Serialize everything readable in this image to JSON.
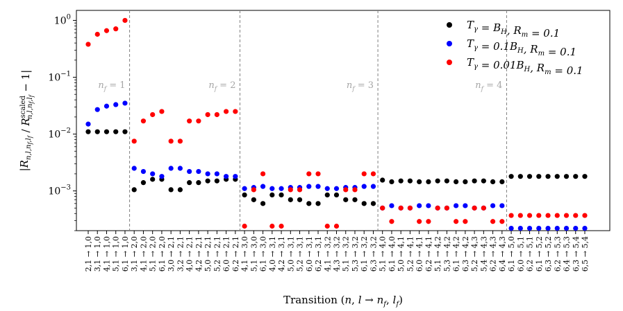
{
  "chart_data": {
    "type": "scatter",
    "xlabel": "Transition (n, l → n_f, l_f)",
    "ylabel": "|R_{n,l,n_f,l_f} / R^{scaled}_{n,l,n_f,l_f} − 1|",
    "yscale": "log",
    "ylim": [
      0.0002,
      1.5
    ],
    "yticks": [
      "10^{-3}",
      "10^{-2}",
      "10^{-1}",
      "10^{0}"
    ],
    "grid": false,
    "legend_position": "top-right",
    "categories": [
      "2,1 → 1,0",
      "3,1 → 1,0",
      "4,1 → 1,0",
      "5,1 → 1,0",
      "6,1 → 1,0",
      "3,1 → 2,0",
      "4,1 → 2,0",
      "5,1 → 2,0",
      "6,1 → 2,0",
      "3,0 → 2,1",
      "3,2 → 2,1",
      "4,0 → 2,1",
      "4,2 → 2,1",
      "5,0 → 2,1",
      "5,2 → 2,1",
      "6,0 → 2,1",
      "6,2 → 2,1",
      "4,1 → 3,0",
      "5,1 → 3,0",
      "6,1 → 3,0",
      "4,0 → 3,1",
      "4,2 → 3,1",
      "5,0 → 3,1",
      "5,2 → 3,1",
      "6,0 → 3,1",
      "6,2 → 3,1",
      "4,1 → 3,2",
      "4,3 → 3,2",
      "5,1 → 3,2",
      "5,3 → 3,2",
      "6,1 → 3,2",
      "6,3 → 3,2",
      "5,1 → 4,0",
      "6,1 → 4,0",
      "5,0 → 4,1",
      "5,2 → 4,1",
      "6,0 → 4,1",
      "6,2 → 4,1",
      "5,1 → 4,2",
      "5,3 → 4,2",
      "6,1 → 4,2",
      "6,3 → 4,2",
      "5,2 → 4,3",
      "5,4 → 4,3",
      "6,2 → 4,3",
      "6,4 → 4,3",
      "6,1 → 5,0",
      "6,0 → 5,1",
      "6,2 → 5,1",
      "6,1 → 5,2",
      "6,3 → 5,2",
      "6,2 → 5,3",
      "6,4 → 5,3",
      "6,3 → 5,4",
      "6,5 → 5,4"
    ],
    "regions": [
      {
        "label": "n_f = 1",
        "end_index": 4
      },
      {
        "label": "n_f = 2",
        "end_index": 16
      },
      {
        "label": "n_f = 3",
        "end_index": 31
      },
      {
        "label": "n_f = 4",
        "end_index": 45
      }
    ],
    "series": [
      {
        "name": "T_γ = B_H, R_m = 0.1",
        "color": "#000000",
        "values": [
          0.011,
          0.011,
          0.011,
          0.011,
          0.011,
          0.00105,
          0.0014,
          0.0016,
          0.0016,
          0.00105,
          0.00105,
          0.0014,
          0.0014,
          0.0015,
          0.0015,
          0.0016,
          0.0016,
          0.00085,
          0.0007,
          0.0006,
          0.00085,
          0.00085,
          0.0007,
          0.0007,
          0.0006,
          0.0006,
          0.00085,
          0.00085,
          0.0007,
          0.0007,
          0.0006,
          0.0006,
          0.00155,
          0.00145,
          0.0015,
          0.0015,
          0.00145,
          0.00145,
          0.0015,
          0.0015,
          0.00145,
          0.00145,
          0.0015,
          0.0015,
          0.00145,
          0.00145,
          0.0018,
          0.0018,
          0.0018,
          0.0018,
          0.0018,
          0.0018,
          0.0018,
          0.0018,
          0.0018
        ]
      },
      {
        "name": "T_γ = 0.1B_H, R_m = 0.1",
        "color": "#0000ff",
        "values": [
          0.015,
          0.027,
          0.031,
          0.033,
          0.035,
          0.0025,
          0.0022,
          0.002,
          0.0018,
          0.0025,
          0.0025,
          0.0022,
          0.0022,
          0.002,
          0.002,
          0.0018,
          0.0018,
          0.0011,
          0.00115,
          0.0012,
          0.0011,
          0.0011,
          0.00115,
          0.00115,
          0.0012,
          0.0012,
          0.0011,
          0.0011,
          0.00115,
          0.00115,
          0.0012,
          0.0012,
          0.0005,
          0.00055,
          0.0005,
          0.0005,
          0.00055,
          0.00055,
          0.0005,
          0.0005,
          0.00055,
          0.00055,
          0.0005,
          0.0005,
          0.00055,
          0.00055,
          0.00022,
          0.00022,
          0.00022,
          0.00022,
          0.00022,
          0.00022,
          0.00022,
          0.00022,
          0.00022
        ]
      },
      {
        "name": "T_γ = 0.01B_H, R_m = 0.1",
        "color": "#ff0000",
        "values": [
          0.38,
          0.57,
          0.66,
          0.71,
          1.0,
          0.0075,
          0.017,
          0.022,
          0.025,
          0.0075,
          0.0075,
          0.017,
          0.017,
          0.022,
          0.022,
          0.025,
          0.025,
          0.00024,
          0.00105,
          0.002,
          0.00024,
          0.00024,
          0.00105,
          0.00105,
          0.002,
          0.002,
          0.00024,
          0.00024,
          0.00105,
          0.00105,
          0.002,
          0.002,
          0.0005,
          0.00029,
          0.0005,
          0.0005,
          0.00029,
          0.00029,
          0.0005,
          0.0005,
          0.00029,
          0.00029,
          0.0005,
          0.0005,
          0.00029,
          0.00029,
          0.00037,
          0.00037,
          0.00037,
          0.00037,
          0.00037,
          0.00037,
          0.00037,
          0.00037,
          0.00037
        ]
      }
    ]
  }
}
